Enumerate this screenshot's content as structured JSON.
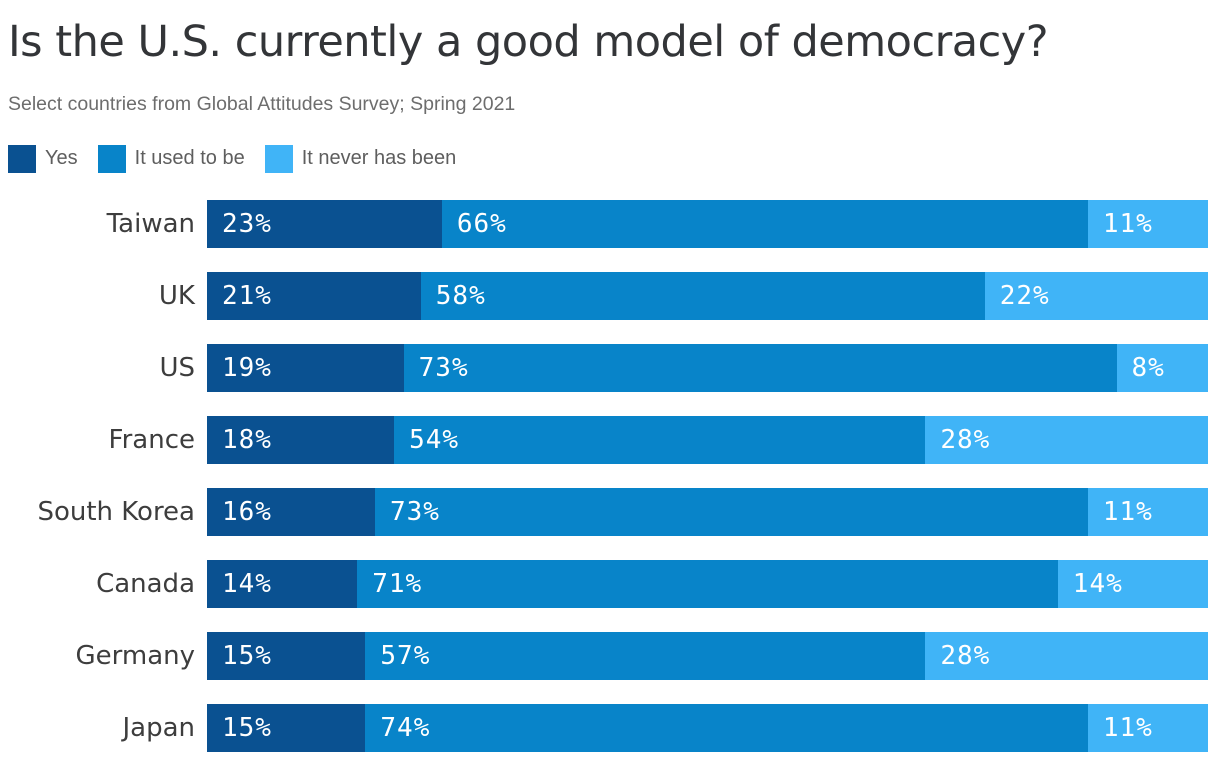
{
  "chart_data": {
    "type": "bar",
    "orientation": "horizontal",
    "stacked": true,
    "title": "Is the U.S. currently a good model of democracy?",
    "subtitle": "Select countries from Global Attitudes Survey; Spring 2021",
    "categories": [
      "Taiwan",
      "UK",
      "US",
      "France",
      "South Korea",
      "Canada",
      "Germany",
      "Japan"
    ],
    "series": [
      {
        "name": "Yes",
        "color": "#0a5191",
        "values": [
          23,
          21,
          19,
          18,
          16,
          14,
          15,
          15
        ]
      },
      {
        "name": "It used to be",
        "color": "#0884c9",
        "values": [
          66,
          58,
          73,
          54,
          73,
          71,
          57,
          74
        ]
      },
      {
        "name": "It never has been",
        "color": "#40b4f7",
        "values": [
          11,
          22,
          8,
          28,
          11,
          14,
          28,
          11
        ]
      }
    ],
    "value_suffix": "%",
    "value_label_color": "#ffffff",
    "legend_position": "top",
    "grid": false,
    "axis_ticks": "none"
  }
}
